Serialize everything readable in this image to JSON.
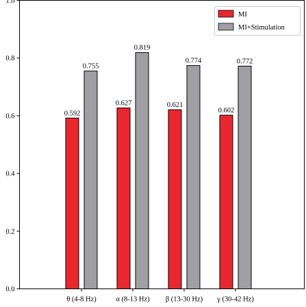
{
  "chart_data": {
    "type": "bar",
    "categories": [
      "θ (4-8 Hz)",
      "α (8-13 Hz)",
      "β (13-30 Hz)",
      "γ (30-42 Hz)"
    ],
    "series": [
      {
        "name": "MI",
        "values": [
          0.592,
          0.627,
          0.621,
          0.602
        ],
        "color": "#e8282e"
      },
      {
        "name": "MI+Stimulation",
        "values": [
          0.755,
          0.819,
          0.774,
          0.772
        ],
        "color": "#a0a0a4"
      }
    ],
    "value_labels": [
      [
        "0.592",
        "0.627",
        "0.621",
        "0.602"
      ],
      [
        "0.755",
        "0.819",
        "0.774",
        "0.772"
      ]
    ],
    "ylim": [
      0,
      1.0
    ],
    "yticks": [
      "0.0",
      "0.2",
      "0.4",
      "0.6",
      "0.8",
      "1.0"
    ],
    "grid": false,
    "legend_position": "top-right",
    "title": "",
    "xlabel": "",
    "ylabel": ""
  }
}
